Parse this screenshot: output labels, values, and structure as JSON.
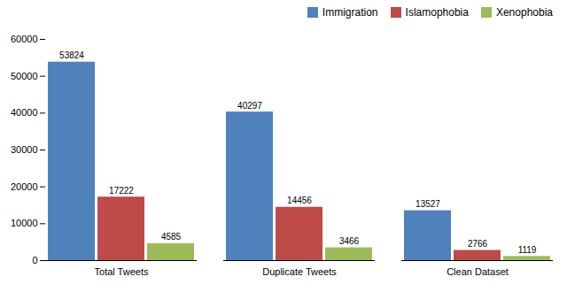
{
  "chart_data": {
    "type": "bar",
    "categories": [
      "Total Tweets",
      "Duplicate Tweets",
      "Clean Dataset"
    ],
    "series": [
      {
        "name": "Immigration",
        "color": "#4F81BD",
        "values": [
          53824,
          40297,
          13527
        ]
      },
      {
        "name": "Islamophobia",
        "color": "#BE4B48",
        "values": [
          17222,
          14456,
          2766
        ]
      },
      {
        "name": "Xenophobia",
        "color": "#9BBB59",
        "values": [
          4585,
          3466,
          1119
        ]
      }
    ],
    "ylim": [
      0,
      60000
    ],
    "yticks": [
      0,
      10000,
      20000,
      30000,
      40000,
      50000,
      60000
    ],
    "grid": false,
    "legend": "upper right",
    "data_labels": true
  }
}
